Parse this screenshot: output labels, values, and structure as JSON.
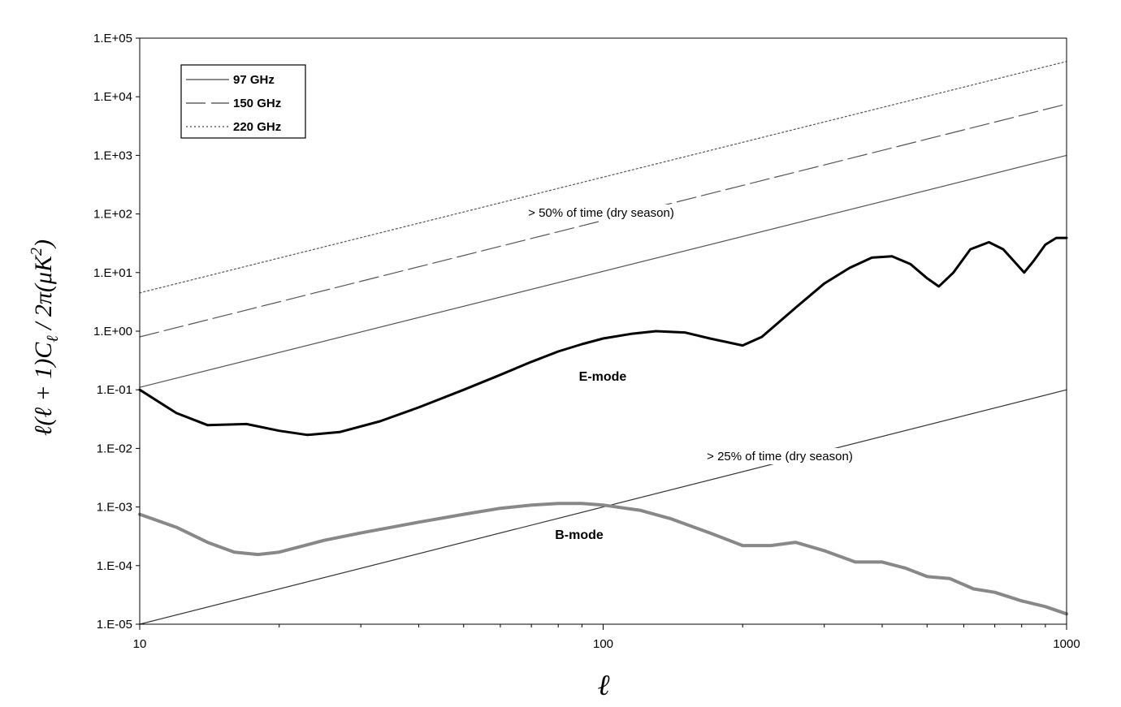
{
  "chart_data": {
    "type": "line",
    "x_scale": "log",
    "y_scale": "log",
    "xlim": [
      10,
      1000
    ],
    "ylim": [
      1e-05,
      100000
    ],
    "x_ticks": [
      {
        "value": 10,
        "label": "10"
      },
      {
        "value": 100,
        "label": "100"
      },
      {
        "value": 1000,
        "label": "1000"
      }
    ],
    "y_ticks": [
      {
        "value": 100000,
        "label": "1.E+05"
      },
      {
        "value": 10000,
        "label": "1.E+04"
      },
      {
        "value": 1000,
        "label": "1.E+03"
      },
      {
        "value": 100,
        "label": "1.E+02"
      },
      {
        "value": 10,
        "label": "1.E+01"
      },
      {
        "value": 1,
        "label": "1.E+00"
      },
      {
        "value": 0.1,
        "label": "1.E-01"
      },
      {
        "value": 0.01,
        "label": "1.E-02"
      },
      {
        "value": 0.001,
        "label": "1.E-03"
      },
      {
        "value": 0.0001,
        "label": "1.E-04"
      },
      {
        "value": 1e-05,
        "label": "1.E-05"
      }
    ],
    "xlabel": "ℓ",
    "ylabel": "ℓ(ℓ + 1)C_ℓ / 2π(μK²)",
    "ylabel_parts": {
      "a": "ℓ(ℓ + 1)C",
      "sub": "ℓ",
      "b": " / 2π(μK",
      "sup": "2",
      "c": ")"
    },
    "grid": false,
    "legend": {
      "placement": "top-left",
      "entries": [
        {
          "label": "97 GHz",
          "style": "solid"
        },
        {
          "label": "150 GHz",
          "style": "dashed"
        },
        {
          "label": "220 GHz",
          "style": "dotted"
        }
      ]
    },
    "series": [
      {
        "name": "97 GHz",
        "style": "solid",
        "color": "#555555",
        "x": [
          10,
          1000
        ],
        "y": [
          0.11,
          1000
        ]
      },
      {
        "name": "150 GHz",
        "style": "dashed",
        "color": "#555555",
        "x": [
          10,
          1000
        ],
        "y": [
          0.8,
          7500
        ]
      },
      {
        "name": "220 GHz",
        "style": "dotted",
        "color": "#555555",
        "x": [
          10,
          1000
        ],
        "y": [
          4.5,
          40000
        ]
      },
      {
        "style": "solid",
        "color": "#333333",
        "x": [
          10,
          1000
        ],
        "y": [
          1e-05,
          0.1
        ]
      },
      {
        "name": "E-mode",
        "style": "thick",
        "color": "#000000",
        "x": [
          10,
          12,
          14,
          17,
          20,
          23,
          27,
          33,
          40,
          50,
          60,
          70,
          80,
          90,
          100,
          115,
          130,
          150,
          170,
          200,
          220,
          260,
          300,
          340,
          380,
          420,
          460,
          500,
          530,
          570,
          620,
          680,
          730,
          780,
          810,
          850,
          900,
          950,
          1000
        ],
        "y": [
          0.1,
          0.04,
          0.025,
          0.026,
          0.02,
          0.017,
          0.019,
          0.029,
          0.05,
          0.1,
          0.18,
          0.3,
          0.45,
          0.6,
          0.75,
          0.9,
          1.0,
          0.95,
          0.75,
          0.57,
          0.8,
          2.5,
          6.5,
          12,
          18,
          19,
          14,
          8,
          5.8,
          10,
          25,
          33,
          25,
          14,
          10,
          16,
          30,
          39,
          39
        ]
      },
      {
        "name": "B-mode",
        "style": "thick",
        "color": "#888888",
        "x": [
          10,
          12,
          14,
          16,
          18,
          20,
          25,
          30,
          40,
          50,
          60,
          70,
          80,
          90,
          100,
          120,
          140,
          170,
          200,
          230,
          260,
          300,
          350,
          400,
          450,
          500,
          560,
          630,
          700,
          800,
          900,
          1000
        ],
        "y": [
          0.00075,
          0.00045,
          0.00025,
          0.00017,
          0.000155,
          0.00017,
          0.00027,
          0.00036,
          0.00055,
          0.00075,
          0.00095,
          0.00108,
          0.00115,
          0.00115,
          0.00108,
          0.00088,
          0.00063,
          0.00036,
          0.00022,
          0.00022,
          0.00025,
          0.00018,
          0.000115,
          0.000115,
          9e-05,
          6.5e-05,
          6e-05,
          4e-05,
          3.5e-05,
          2.5e-05,
          2e-05,
          1.5e-05
        ]
      }
    ],
    "annotations": [
      {
        "text": "> 50% of time (dry season)"
      },
      {
        "text": "> 25% of time (dry season)"
      },
      {
        "text": "E-mode"
      },
      {
        "text": "B-mode"
      }
    ]
  }
}
